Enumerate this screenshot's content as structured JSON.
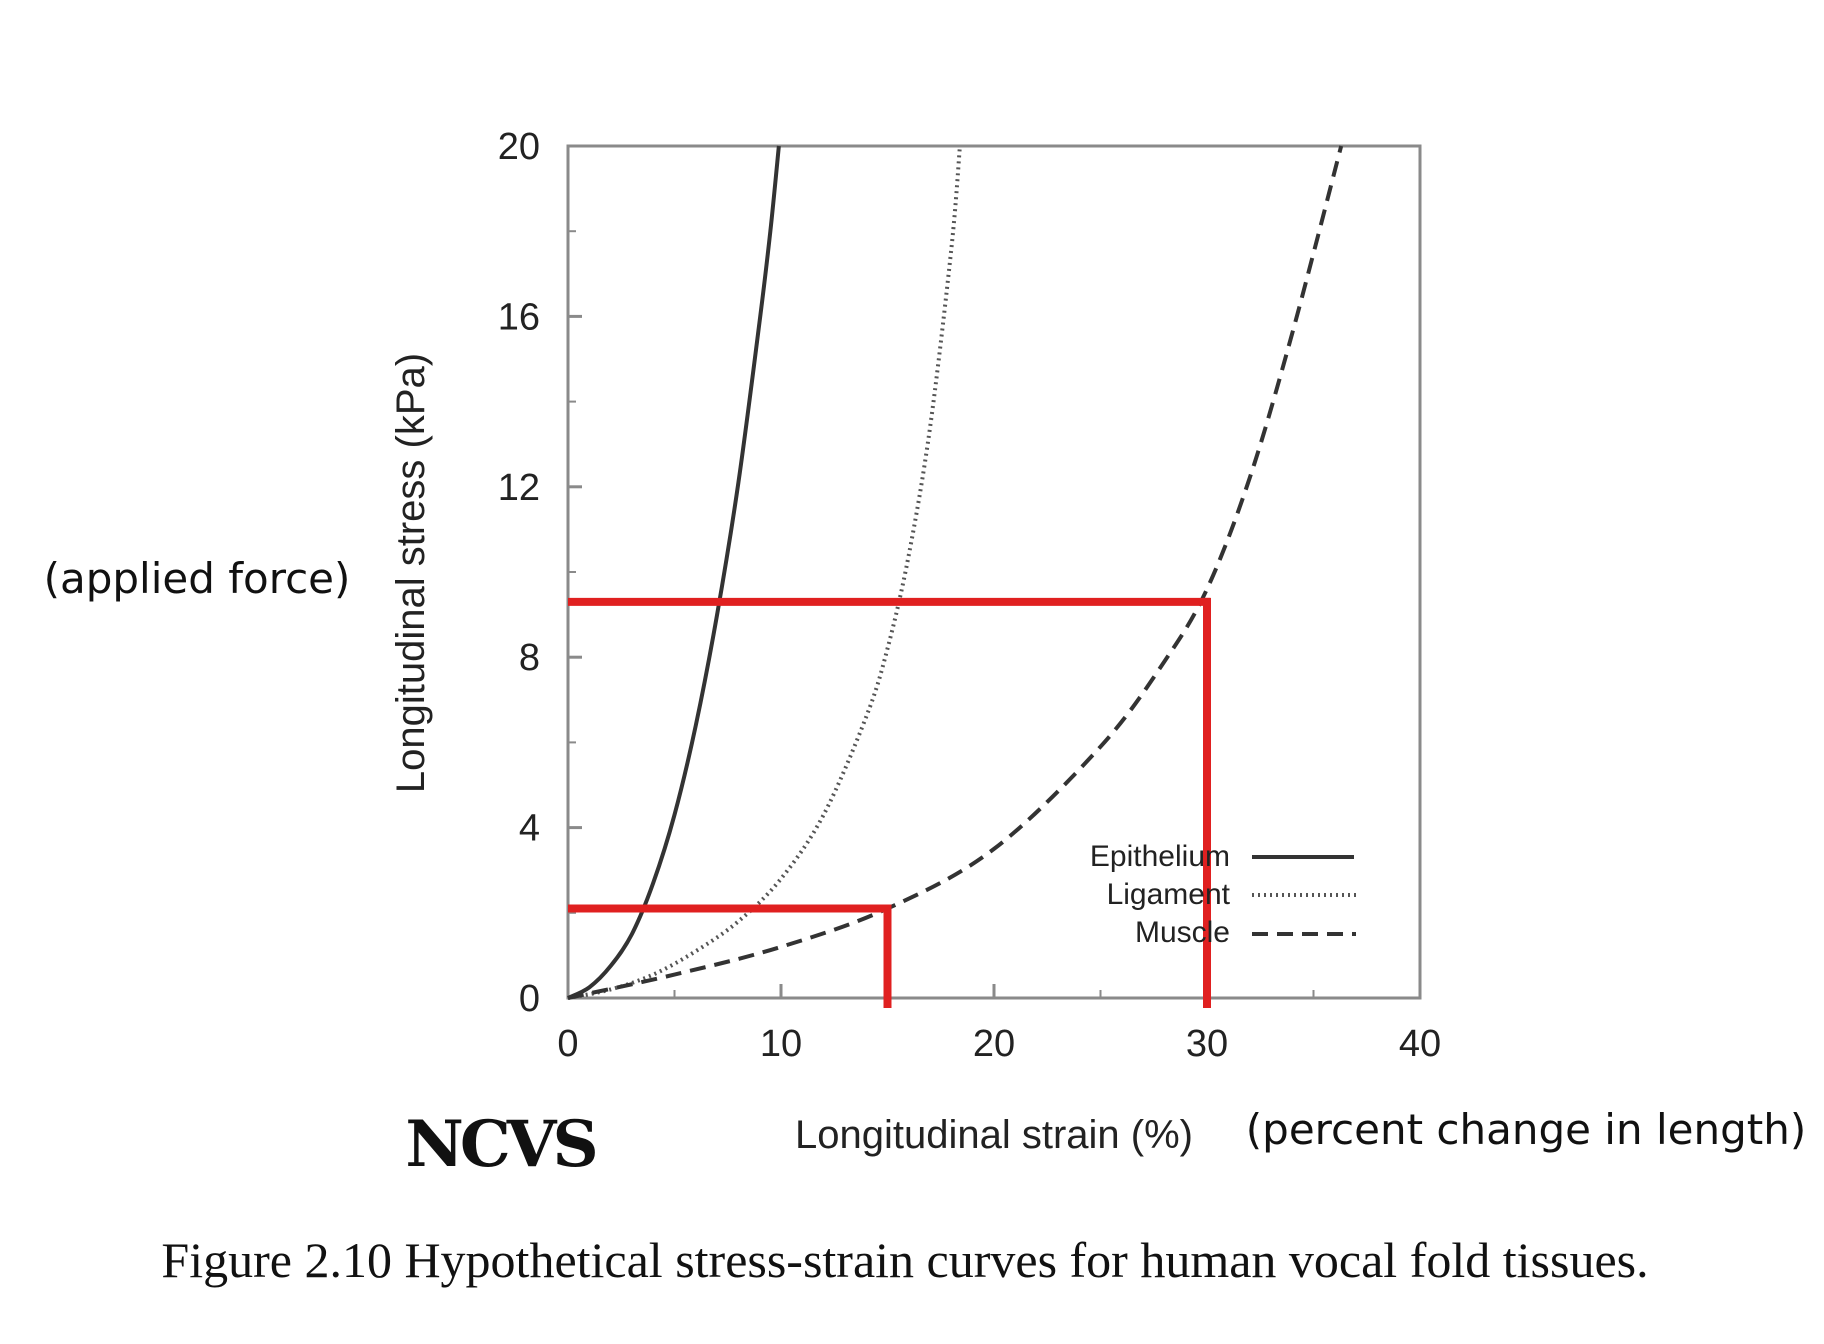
{
  "chart_data": {
    "type": "line",
    "xlabel": "Longitudinal strain (%)",
    "ylabel": "Longitudinal stress (kPa)",
    "xlim": [
      0,
      40
    ],
    "ylim": [
      0,
      20
    ],
    "x_ticks": [
      0,
      10,
      20,
      30,
      40
    ],
    "y_ticks": [
      0,
      4,
      8,
      12,
      16,
      20
    ],
    "x_tick_labels": [
      "0",
      "10",
      "20",
      "30",
      "40"
    ],
    "y_tick_labels": [
      "0",
      "4",
      "8",
      "12",
      "16",
      "20"
    ],
    "grid": false,
    "legend_position": "bottom-right",
    "series": [
      {
        "name": "Epithelium",
        "style": "solid",
        "color": "#333333",
        "x": [
          0,
          1,
          2,
          3,
          4,
          5,
          6,
          7,
          8,
          9,
          9.5,
          9.9
        ],
        "y": [
          0,
          0.25,
          0.75,
          1.5,
          2.7,
          4.3,
          6.4,
          9.0,
          12.1,
          15.9,
          18.0,
          20
        ]
      },
      {
        "name": "Ligament",
        "style": "dotted",
        "color": "#555555",
        "x": [
          0,
          2,
          4,
          6,
          8,
          10,
          12,
          14,
          15,
          16,
          17,
          18,
          18.4
        ],
        "y": [
          0,
          0.2,
          0.55,
          1.1,
          1.8,
          2.8,
          4.3,
          6.6,
          8.2,
          10.4,
          13.4,
          17.6,
          20
        ]
      },
      {
        "name": "Muscle",
        "style": "dashed",
        "color": "#333333",
        "x": [
          0,
          5,
          10,
          15,
          20,
          25,
          28,
          30,
          32,
          34,
          36.3
        ],
        "y": [
          0,
          0.55,
          1.2,
          2.1,
          3.5,
          5.9,
          7.9,
          9.6,
          12.2,
          15.6,
          20
        ]
      }
    ],
    "annotations": [
      {
        "color": "#e02020",
        "x": 15,
        "y": 2.1
      },
      {
        "color": "#e02020",
        "x": 30,
        "y": 9.3
      }
    ]
  },
  "legend": {
    "items": [
      "Epithelium",
      "Ligament",
      "Muscle"
    ]
  },
  "notes": {
    "left": "(applied force)",
    "right": "(percent change in length)"
  },
  "logo": "NCVS",
  "caption": "Figure 2.10 Hypothetical stress-strain curves for human vocal fold tissues.",
  "colors": {
    "highlight": "#e02020",
    "axis": "#8a8a8a",
    "text": "#111111"
  }
}
